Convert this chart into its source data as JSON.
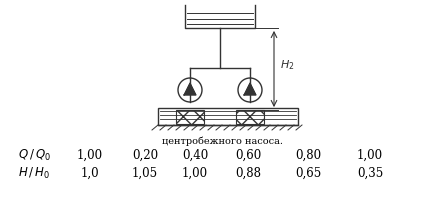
{
  "subtitle": "центробежного насоса.",
  "row1_label": "Q / Q_0",
  "row2_label": "H / H_0",
  "row1_values": [
    "1,00",
    "0,20",
    "0,40",
    "0,60",
    "0,80",
    "1,00"
  ],
  "row2_values": [
    "1,0",
    "1,05",
    "1,00",
    "0,88",
    "0,65",
    "0,35"
  ],
  "H2_label": "H_2",
  "bg_color": "#ffffff",
  "text_color": "#000000",
  "diagram_line_color": "#333333"
}
